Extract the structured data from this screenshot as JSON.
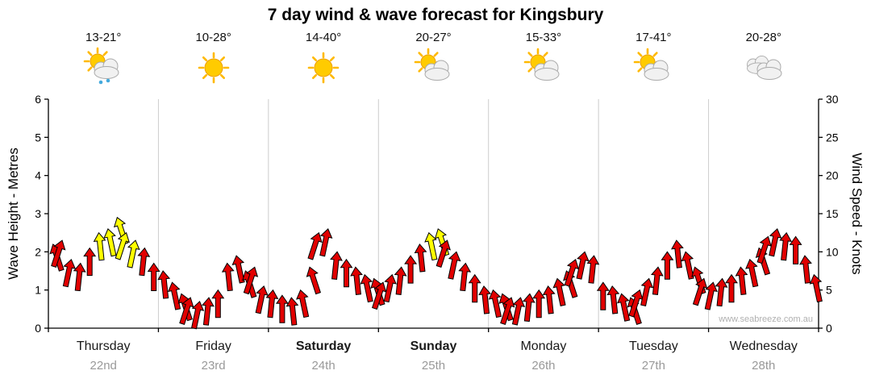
{
  "title": "7 day wind & wave forecast for Kingsbury",
  "watermark": "www.seabreeze.com.au",
  "forecast_days": [
    {
      "temp": "13-21°",
      "icon": "sun-cloud-rain",
      "day": "Thursday",
      "date": "22nd",
      "weekend": false
    },
    {
      "temp": "10-28°",
      "icon": "sun",
      "day": "Friday",
      "date": "23rd",
      "weekend": false
    },
    {
      "temp": "14-40°",
      "icon": "sun",
      "day": "Saturday",
      "date": "24th",
      "weekend": true
    },
    {
      "temp": "20-27°",
      "icon": "sun-cloud",
      "day": "Sunday",
      "date": "25th",
      "weekend": true
    },
    {
      "temp": "15-33°",
      "icon": "sun-cloud",
      "day": "Monday",
      "date": "26th",
      "weekend": false
    },
    {
      "temp": "17-41°",
      "icon": "sun-cloud",
      "day": "Tuesday",
      "date": "27th",
      "weekend": false
    },
    {
      "temp": "20-28°",
      "icon": "cloud",
      "day": "Wednesday",
      "date": "28th",
      "weekend": false
    }
  ],
  "chart_data": {
    "type": "line",
    "title": "7 day wind & wave forecast for Kingsbury",
    "categories": [
      "Thursday 22nd",
      "Friday 23rd",
      "Saturday 24th",
      "Sunday 25th",
      "Monday 26th",
      "Tuesday 27th",
      "Wednesday 28th"
    ],
    "y_left": {
      "label": "Wave Height - Metres",
      "range": [
        0,
        6
      ],
      "ticks": [
        0,
        1,
        2,
        3,
        4,
        5,
        6
      ]
    },
    "y_right": {
      "label": "Wind Speed - Knots",
      "range": [
        0,
        30
      ],
      "ticks": [
        0,
        5,
        10,
        15,
        20,
        25,
        30
      ]
    },
    "grid": "vertical-day-boundaries",
    "legend": "none",
    "wind_series": {
      "name": "wind_speed_knots",
      "samples_per_day": 12,
      "knots": [
        11,
        11.5,
        9,
        8.5,
        10.5,
        12.5,
        13,
        14.5,
        12.5,
        11.5,
        10.5,
        8.5,
        7.5,
        6,
        4.5,
        4,
        3.5,
        4,
        5,
        8.5,
        9.5,
        7.5,
        8,
        5.5,
        5,
        4.3,
        4,
        5,
        8,
        12.5,
        13,
        10,
        9,
        8,
        7,
        6.5,
        6,
        7,
        8,
        9.5,
        11,
        12.5,
        13,
        11.5,
        10,
        8.5,
        7,
        5.5,
        5,
        4.5,
        4,
        4,
        4.5,
        5,
        5.5,
        6.5,
        7.5,
        9,
        10,
        9.5,
        6,
        5.5,
        4.5,
        4,
        5,
        6.5,
        8,
        10,
        11.5,
        10,
        8,
        6.5,
        6,
        6.5,
        7,
        8,
        9,
        10.5,
        12,
        13,
        12.5,
        12,
        9.5,
        7
      ],
      "strong_indices": [
        5,
        6,
        7,
        8,
        9,
        41,
        42
      ]
    },
    "colors": {
      "normal_arrow": "#e10000",
      "strong_arrow": "#ffff00",
      "grid": "#cccccc",
      "axis": "#000000",
      "date_label": "#999999",
      "watermark": "#b0b0b0"
    }
  }
}
